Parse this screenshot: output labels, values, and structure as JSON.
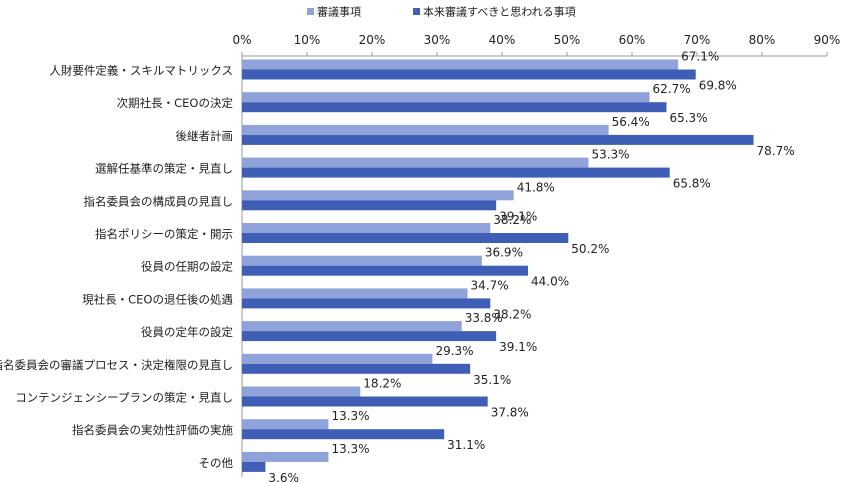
{
  "chart_data": {
    "type": "bar",
    "orientation": "horizontal",
    "categories": [
      "人財要件定義・スキルマトリックス",
      "次期社長・CEOの決定",
      "後継者計画",
      "選解任基準の策定・見直し",
      "指名委員会の構成員の見直し",
      "指名ポリシーの策定・開示",
      "役員の任期の設定",
      "現社長・CEOの退任後の処遇",
      "役員の定年の設定",
      "指名委員会の審議プロセス・決定権限の見直し",
      "コンテンジェンシープランの策定・見直し",
      "指名委員会の実効性評価の実施",
      "その他"
    ],
    "series": [
      {
        "name": "審議事項",
        "color": "#8FA2D9",
        "values": [
          67.1,
          62.7,
          56.4,
          53.3,
          41.8,
          38.2,
          36.9,
          34.7,
          33.8,
          29.3,
          18.2,
          13.3,
          13.3
        ],
        "labels": [
          "67.1%",
          "62.7%",
          "56.4%",
          "53.3%",
          "41.8%",
          "38.2%",
          "36.9%",
          "34.7%",
          "33.8%",
          "29.3%",
          "18.2%",
          "13.3%",
          "13.3%"
        ]
      },
      {
        "name": "本来審議すべきと思われる事項",
        "color": "#3E5FB5",
        "values": [
          69.8,
          65.3,
          78.7,
          65.8,
          39.1,
          50.2,
          44.0,
          38.2,
          39.1,
          35.1,
          37.8,
          31.1,
          3.6
        ],
        "labels": [
          "69.8%",
          "65.3%",
          "78.7%",
          "65.8%",
          "39.1%",
          "50.2%",
          "44.0%",
          "38.2%",
          "39.1%",
          "35.1%",
          "37.8%",
          "31.1%",
          "3.6%"
        ]
      }
    ],
    "xlim": [
      0,
      90
    ],
    "ticks": [
      0,
      10,
      20,
      30,
      40,
      50,
      60,
      70,
      80,
      90
    ],
    "tick_labels": [
      "0%",
      "10%",
      "20%",
      "30%",
      "40%",
      "50%",
      "60%",
      "70%",
      "80%",
      "90%"
    ],
    "axis_position": "top",
    "grid": false,
    "legend_position": "top"
  }
}
